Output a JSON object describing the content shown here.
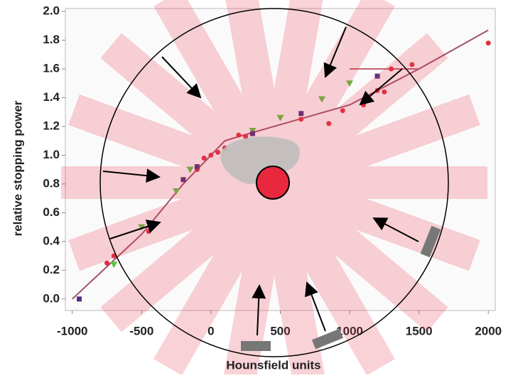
{
  "chart_data": {
    "type": "scatter",
    "xlabel": "Hounsfield units",
    "ylabel": "relative stopping power",
    "xlim": [
      -1050,
      2050
    ],
    "ylim": [
      -0.08,
      2.02
    ],
    "xticks": [
      -1000,
      -500,
      0,
      500,
      1000,
      1500,
      2000
    ],
    "yticks": [
      {
        "value": 0,
        "label": "0.0"
      },
      {
        "value": 0.2,
        "label": "0.2"
      },
      {
        "value": 0.4,
        "label": "0.4"
      },
      {
        "value": 0.6,
        "label": "0.6"
      },
      {
        "value": 0.8,
        "label": "0.8"
      },
      {
        "value": 1,
        "label": "1.0"
      },
      {
        "value": 1.2,
        "label": "1.2"
      },
      {
        "value": 1.4,
        "label": "1.4"
      },
      {
        "value": 1.6,
        "label": "1.6"
      },
      {
        "value": 1.8,
        "label": "1.8"
      },
      {
        "value": 2,
        "label": "2.0"
      }
    ],
    "series": [
      {
        "marker": "line",
        "color": "#a0506a",
        "x": [
          -1000,
          -500,
          -200,
          0,
          100,
          200,
          1000,
          1500,
          2000
        ],
        "values": [
          0,
          0.45,
          0.8,
          1.0,
          1.1,
          1.13,
          1.35,
          1.6,
          1.87
        ]
      },
      {
        "marker": "line",
        "color": "#c06070",
        "x": [
          1000,
          1500
        ],
        "values": [
          1.6,
          1.6
        ]
      },
      {
        "marker": "circle",
        "color": "#e03040",
        "x": [
          -750,
          -700,
          -450,
          -100,
          -50,
          0,
          50,
          100,
          200,
          250,
          650,
          850,
          950,
          1100,
          1200,
          1250,
          1300,
          1450,
          2000
        ],
        "values": [
          0.25,
          0.3,
          0.47,
          0.9,
          0.98,
          1.0,
          1.02,
          1.05,
          1.14,
          1.13,
          1.25,
          1.22,
          1.31,
          1.35,
          1.45,
          1.44,
          1.6,
          1.63,
          1.78
        ]
      },
      {
        "marker": "triangle",
        "color": "#60c040",
        "x": [
          -700,
          -500,
          -250,
          -150,
          300,
          500,
          800,
          1000
        ],
        "values": [
          0.24,
          0.5,
          0.75,
          0.9,
          1.17,
          1.26,
          1.39,
          1.5
        ]
      },
      {
        "marker": "square",
        "color": "#503080",
        "x": [
          -950,
          -200,
          -100,
          300,
          650,
          1200
        ],
        "values": [
          0,
          0.83,
          0.92,
          1.15,
          1.29,
          1.55
        ]
      }
    ]
  }
}
